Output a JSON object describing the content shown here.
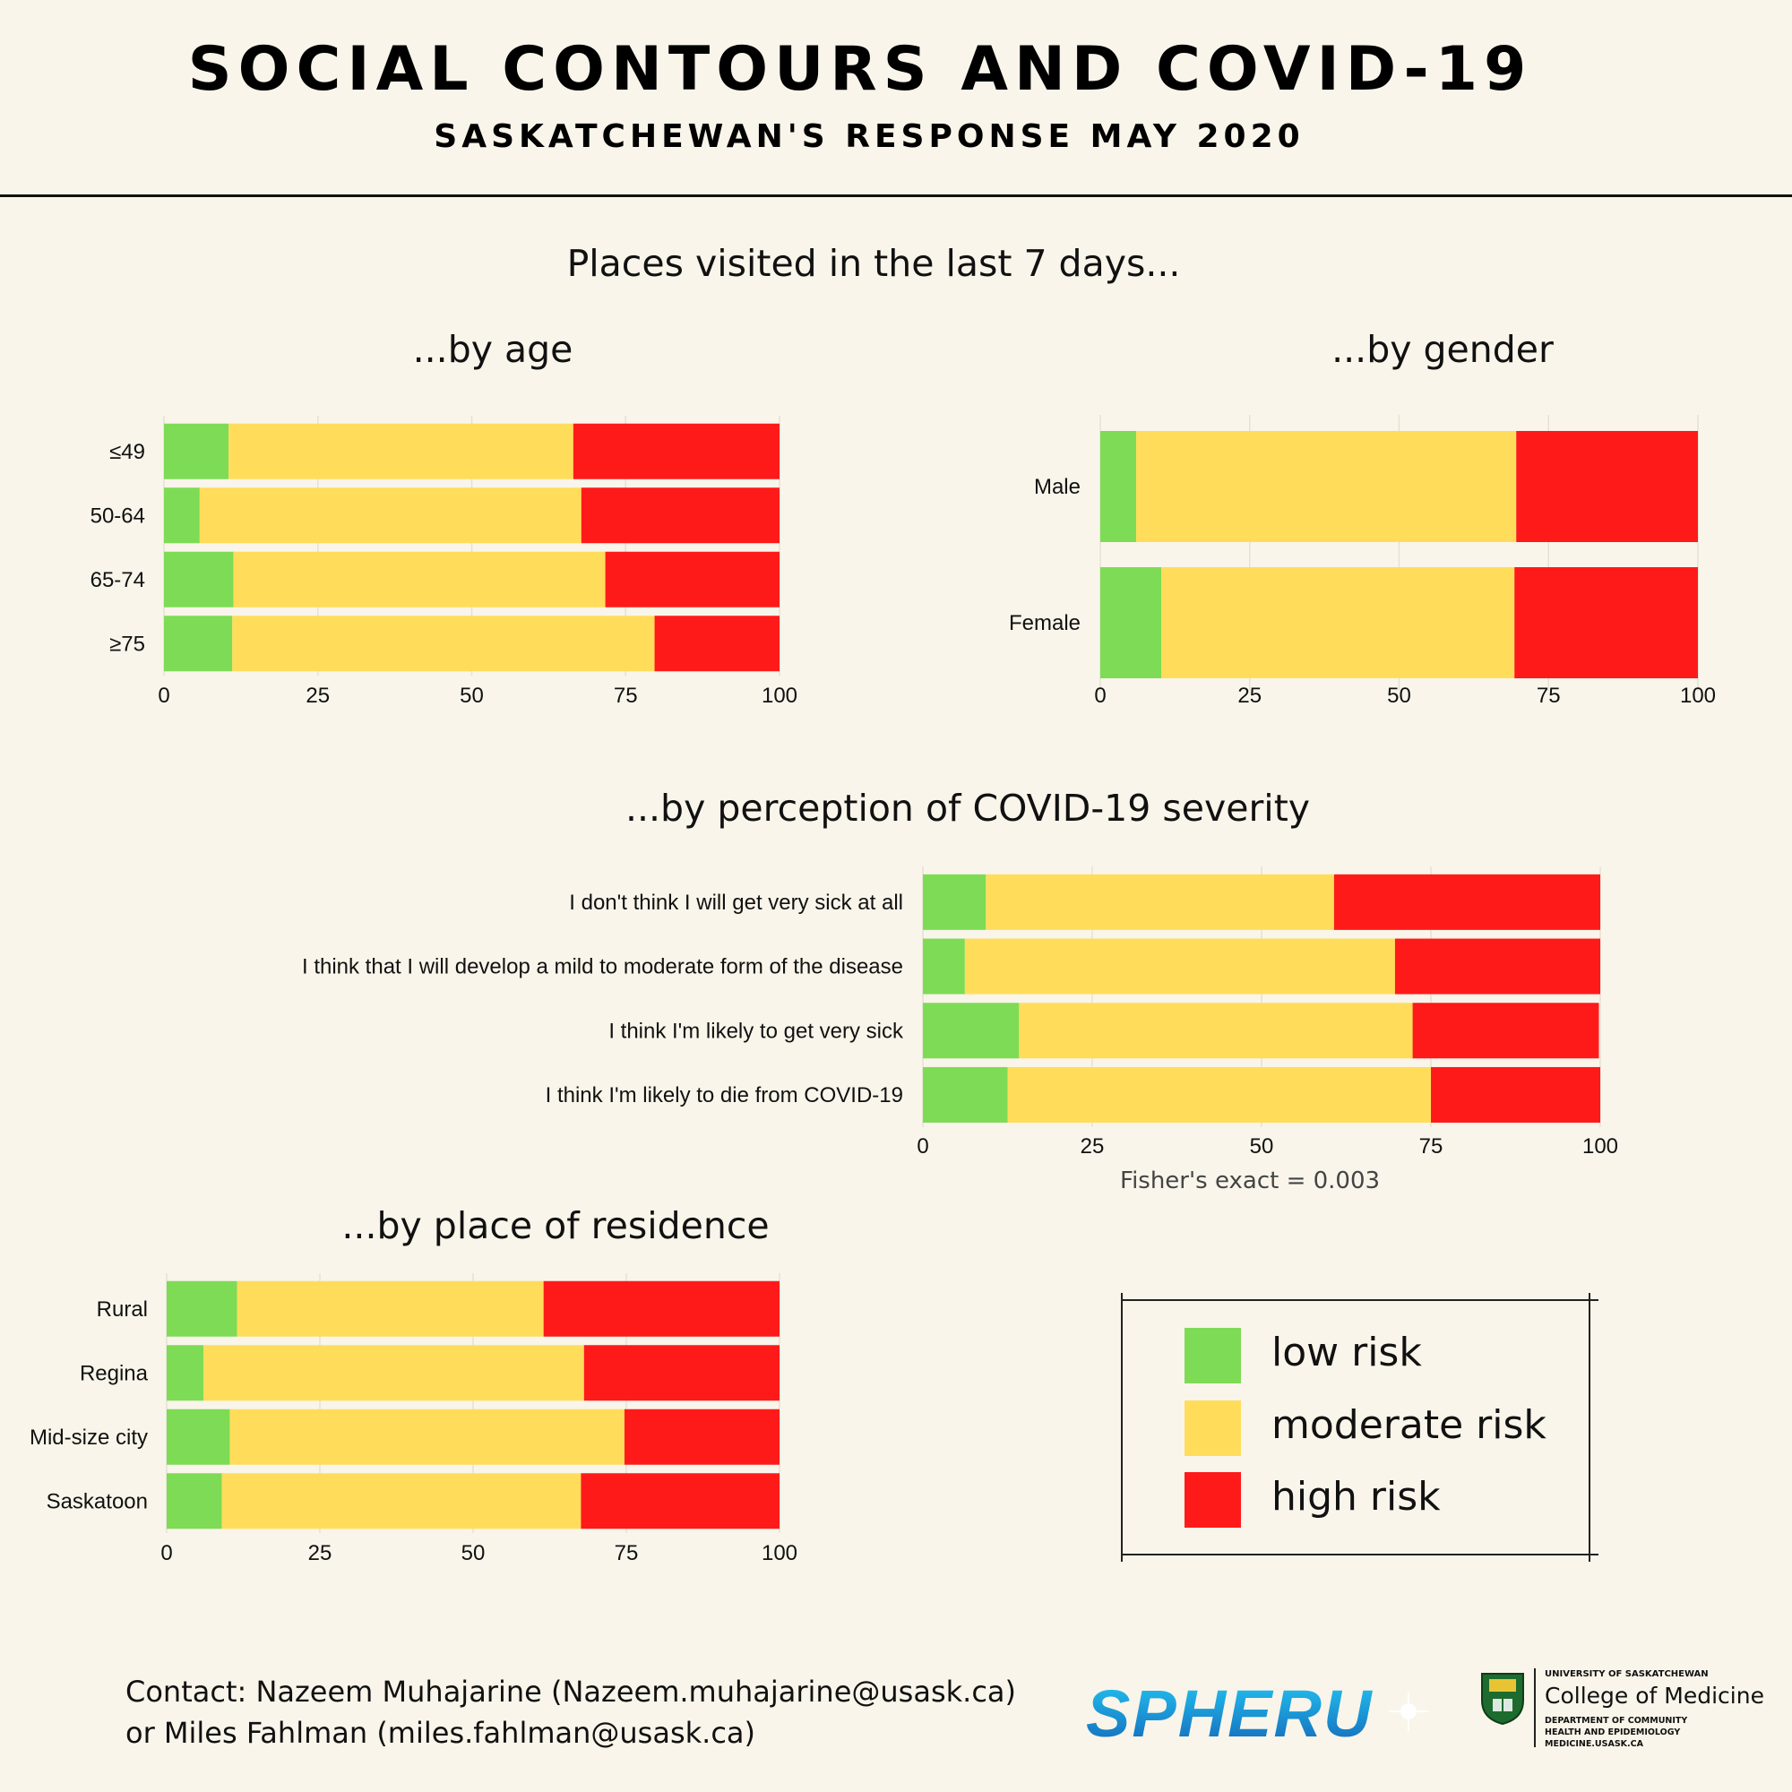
{
  "header": {
    "title": "SOCIAL CONTOURS AND COVID-19",
    "subtitle": "SASKATCHEWAN'S RESPONSE MAY 2020"
  },
  "main_heading": "Places visited in the last 7 days...",
  "colors": {
    "low": "#7edb55",
    "moderate": "#ffdd5a",
    "high": "#ff1a1a",
    "grid": "#e6e1d4"
  },
  "legend": [
    {
      "key": "low",
      "label": "low risk"
    },
    {
      "key": "moderate",
      "label": "moderate risk"
    },
    {
      "key": "high",
      "label": "high risk"
    }
  ],
  "fisher_note": "Fisher's exact = 0.003",
  "contact": {
    "line1": "Contact: Nazeem Muhajarine (Nazeem.muhajarine@usask.ca)",
    "line2": "or Miles Fahlman (miles.fahlman@usask.ca)"
  },
  "logos": {
    "spheru": "SPHERU",
    "uofs_small": "UNIVERSITY OF SASKATCHEWAN",
    "college": "College of Medicine",
    "dept": "DEPARTMENT OF COMMUNITY HEALTH AND EPIDEMIOLOGY MEDICINE.USASK.CA"
  },
  "chart_data": [
    {
      "id": "age",
      "type": "bar",
      "orientation": "horizontal",
      "stacked": true,
      "title": "...by age",
      "categories": [
        "≤49",
        "50-64",
        "65-74",
        "≥75"
      ],
      "series": [
        {
          "name": "low risk",
          "key": "low",
          "values": [
            10.5,
            5.8,
            11.3,
            11.1
          ]
        },
        {
          "name": "moderate risk",
          "key": "moderate",
          "values": [
            56.0,
            62.0,
            60.4,
            68.6
          ]
        },
        {
          "name": "high risk",
          "key": "high",
          "values": [
            33.5,
            32.2,
            28.3,
            20.3
          ]
        }
      ],
      "xlim": [
        0,
        100
      ],
      "ticks": [
        "0",
        "25",
        "50",
        "75",
        "100"
      ]
    },
    {
      "id": "gender",
      "type": "bar",
      "orientation": "horizontal",
      "stacked": true,
      "title": "...by gender",
      "categories": [
        "Male",
        "Female"
      ],
      "series": [
        {
          "name": "low risk",
          "key": "low",
          "values": [
            6.0,
            10.2
          ]
        },
        {
          "name": "moderate risk",
          "key": "moderate",
          "values": [
            63.6,
            59.1
          ]
        },
        {
          "name": "high risk",
          "key": "high",
          "values": [
            30.4,
            30.7
          ]
        }
      ],
      "xlim": [
        0,
        100
      ],
      "ticks": [
        "0",
        "25",
        "50",
        "75",
        "100"
      ]
    },
    {
      "id": "perception",
      "type": "bar",
      "orientation": "horizontal",
      "stacked": true,
      "title": "...by perception of COVID-19 severity",
      "categories": [
        "I don't think I will get very sick at all",
        "I think that I will develop a mild to moderate form of the disease",
        "I think I'm likely to get very sick",
        "I think I'm likely to die from COVID-19"
      ],
      "series": [
        {
          "name": "low risk",
          "key": "low",
          "values": [
            9.3,
            6.2,
            14.2,
            12.5
          ]
        },
        {
          "name": "moderate risk",
          "key": "moderate",
          "values": [
            51.4,
            63.5,
            58.1,
            62.5
          ]
        },
        {
          "name": "high risk",
          "key": "high",
          "values": [
            39.3,
            30.3,
            27.5,
            25.0
          ]
        }
      ],
      "xlim": [
        0,
        100
      ],
      "ticks": [
        "0",
        "25",
        "50",
        "75",
        "100"
      ]
    },
    {
      "id": "residence",
      "type": "bar",
      "orientation": "horizontal",
      "stacked": true,
      "title": "...by place of residence",
      "categories": [
        "Rural",
        "Regina",
        "Mid-size city",
        "Saskatoon"
      ],
      "series": [
        {
          "name": "low risk",
          "key": "low",
          "values": [
            11.5,
            6.0,
            10.3,
            9.0
          ]
        },
        {
          "name": "moderate risk",
          "key": "moderate",
          "values": [
            50.0,
            62.1,
            64.4,
            58.6
          ]
        },
        {
          "name": "high risk",
          "key": "high",
          "values": [
            38.5,
            31.9,
            25.3,
            32.4
          ]
        }
      ],
      "xlim": [
        0,
        100
      ],
      "ticks": [
        "0",
        "25",
        "50",
        "75",
        "100"
      ]
    }
  ]
}
